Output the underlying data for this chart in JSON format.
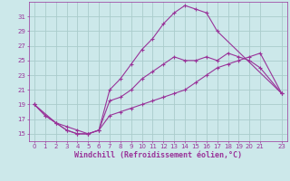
{
  "xlabel": "Windchill (Refroidissement éolien,°C)",
  "bg_color": "#cce8ea",
  "grid_color": "#aacccc",
  "line_color": "#993399",
  "xmin": -0.5,
  "xmax": 23.5,
  "ymin": 14,
  "ymax": 33,
  "yticks": [
    15,
    17,
    19,
    21,
    23,
    25,
    27,
    29,
    31
  ],
  "xticks": [
    0,
    1,
    2,
    3,
    4,
    5,
    6,
    7,
    8,
    9,
    10,
    11,
    12,
    13,
    14,
    15,
    16,
    17,
    18,
    19,
    20,
    21,
    23
  ],
  "xtick_labels": [
    "0",
    "1",
    "2",
    "3",
    "4",
    "5",
    "6",
    "7",
    "8",
    "9",
    "10",
    "11",
    "12",
    "13",
    "14",
    "15",
    "16",
    "17",
    "18",
    "19",
    "20",
    "21",
    "23"
  ],
  "line1_x": [
    0,
    1,
    2,
    3,
    4,
    5,
    6,
    7,
    8,
    9,
    10,
    11,
    12,
    13,
    14,
    15,
    16,
    17,
    23
  ],
  "line1_y": [
    19,
    17.5,
    16.5,
    15.5,
    15,
    15,
    15.5,
    21,
    22.5,
    24.5,
    26.5,
    28,
    30,
    31.5,
    32.5,
    32,
    31.5,
    29,
    20.5
  ],
  "line2_x": [
    0,
    2,
    3,
    4,
    5,
    6,
    7,
    8,
    9,
    10,
    11,
    12,
    13,
    14,
    15,
    16,
    17,
    18,
    19,
    20,
    21,
    23
  ],
  "line2_y": [
    19,
    16.5,
    16,
    15.5,
    15,
    15.5,
    19.5,
    20,
    21,
    22.5,
    23.5,
    24.5,
    25.5,
    25,
    25,
    25.5,
    25,
    26,
    25.5,
    25,
    24,
    20.5
  ],
  "line3_x": [
    0,
    1,
    2,
    3,
    4,
    5,
    6,
    7,
    8,
    9,
    10,
    11,
    12,
    13,
    14,
    15,
    16,
    17,
    18,
    19,
    20,
    21,
    23
  ],
  "line3_y": [
    19,
    17.5,
    16.5,
    15.5,
    15,
    15,
    15.5,
    17.5,
    18,
    18.5,
    19,
    19.5,
    20,
    20.5,
    21,
    22,
    23,
    24,
    24.5,
    25,
    25.5,
    26,
    20.5
  ],
  "tick_fontsize": 5,
  "xlabel_fontsize": 6,
  "xlabel_bold": true
}
